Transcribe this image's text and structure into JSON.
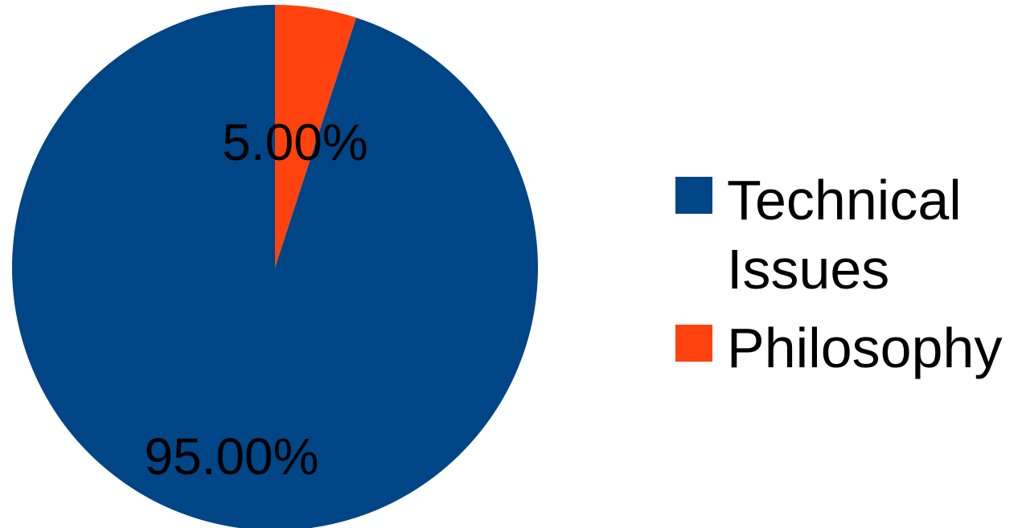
{
  "chart_data": {
    "type": "pie",
    "slices": [
      {
        "label": "Technical Issues",
        "value": 95.0,
        "value_label": "95.00%",
        "color": "#004586"
      },
      {
        "label": "Philosophy",
        "value": 5.0,
        "value_label": "5.00%",
        "color": "#ff420e"
      }
    ],
    "title": "",
    "legend": {
      "position": "right",
      "items": [
        {
          "label_lines": [
            "Technical",
            "Issues"
          ],
          "color": "#004586"
        },
        {
          "label_lines": [
            "Philosophy"
          ],
          "color": "#ff420e"
        }
      ]
    }
  }
}
